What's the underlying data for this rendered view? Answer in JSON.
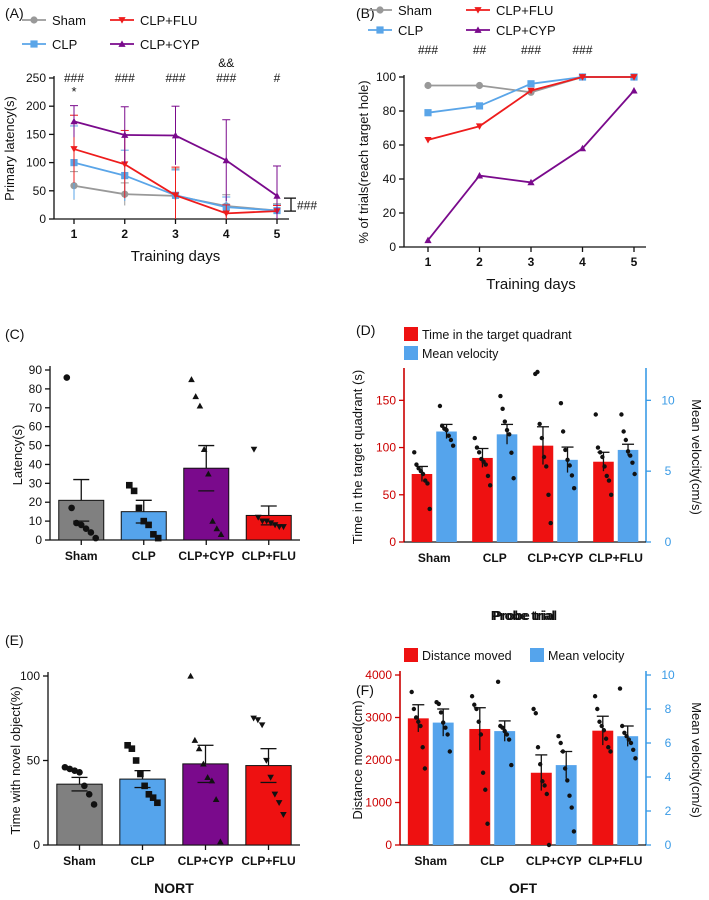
{
  "colors": {
    "sham": "#999999",
    "clp": "#5aa5e8",
    "clp_flu": "#ee1c1c",
    "clp_cyp": "#7a0a8c",
    "bar_sham": "#808080",
    "bar_clp": "#55a4ec",
    "bar_cyp": "#7a0a8c",
    "bar_flu": "#ee1111",
    "right_axis": "#3a9be6",
    "left_axis_red": "#cc0000"
  },
  "chart_data": [
    {
      "panel": "(A)",
      "type": "line",
      "ylabel": "Primary latency(s)",
      "xlabel": "Training days",
      "x": [
        1,
        2,
        3,
        4,
        5
      ],
      "ylim": [
        0,
        250
      ],
      "yticks": [
        "0",
        "50",
        "100",
        "150",
        "200",
        "250"
      ],
      "xticks": [
        "1",
        "2",
        "3",
        "4",
        "5"
      ],
      "series": [
        {
          "name": "Sham",
          "values": [
            59,
            44,
            41,
            23,
            15
          ],
          "err": [
            25,
            20,
            48,
            20,
            12
          ]
        },
        {
          "name": "CLP",
          "values": [
            100,
            77,
            42,
            21,
            15
          ],
          "err": [
            65,
            45,
            45,
            18,
            10
          ]
        },
        {
          "name": "CLP+FLU",
          "values": [
            124,
            97,
            42,
            10,
            14
          ],
          "err": [
            60,
            60,
            50,
            15,
            10
          ]
        },
        {
          "name": "CLP+CYP",
          "values": [
            173,
            149,
            148,
            104,
            41
          ],
          "err": [
            28,
            50,
            52,
            72,
            53
          ]
        }
      ],
      "annotations_top": [
        "###",
        "###",
        "###",
        "###",
        "#"
      ],
      "annotations_star": "*",
      "annotation_amp": "&&",
      "bracket_label": "###",
      "legend": [
        "Sham",
        "CLP",
        "CLP+FLU",
        "CLP+CYP"
      ]
    },
    {
      "panel": "(B)",
      "type": "line",
      "ylabel": "% of trials(reach  target hole)",
      "xlabel": "Training days",
      "x": [
        1,
        2,
        3,
        4,
        5
      ],
      "ylim": [
        0,
        100
      ],
      "yticks": [
        "0",
        "20",
        "40",
        "60",
        "80",
        "100"
      ],
      "xticks": [
        "1",
        "2",
        "3",
        "4",
        "5"
      ],
      "series": [
        {
          "name": "Sham",
          "values": [
            95,
            95,
            91,
            100,
            100
          ]
        },
        {
          "name": "CLP",
          "values": [
            79,
            83,
            96,
            100,
            100
          ]
        },
        {
          "name": "CLP+FLU",
          "values": [
            63,
            71,
            92,
            100,
            100
          ]
        },
        {
          "name": "CLP+CYP",
          "values": [
            4,
            42,
            38,
            58,
            92
          ]
        }
      ],
      "annotations_top": [
        "###",
        "##",
        "###",
        "###"
      ],
      "legend": [
        "Sham",
        "CLP",
        "CLP+FLU",
        "CLP+CYP"
      ]
    },
    {
      "panel": "(C)",
      "type": "bar",
      "ylabel": "Latency(s)",
      "categories": [
        "Sham",
        "CLP",
        "CLP+CYP",
        "CLP+FLU"
      ],
      "values": [
        21,
        15,
        38,
        13
      ],
      "err": [
        11,
        6,
        12,
        5
      ],
      "ylim": [
        0,
        90
      ],
      "yticks": [
        "0",
        "10",
        "20",
        "30",
        "40",
        "50",
        "60",
        "70",
        "80",
        "90"
      ],
      "points": [
        [
          86,
          17,
          9,
          8,
          6,
          4,
          1
        ],
        [
          29,
          26,
          17,
          10,
          8,
          3,
          1
        ],
        [
          85,
          76,
          71,
          48,
          35,
          10,
          6,
          3
        ],
        [
          48,
          12,
          10,
          10,
          9,
          8,
          7,
          7
        ]
      ]
    },
    {
      "panel": "(D)",
      "type": "bar",
      "title": "Probe trial",
      "ylabel": "Time in the target quadrant (s)",
      "ylabel_right": "Mean velocity(cm/s)",
      "categories": [
        "Sham",
        "CLP",
        "CLP+CYP",
        "CLP+FLU"
      ],
      "ylim": [
        0,
        180
      ],
      "yticks": [
        "0",
        "50",
        "100",
        "150"
      ],
      "yticks_right": [
        "0",
        "5",
        "10"
      ],
      "ylim_right": [
        0,
        12
      ],
      "legend": [
        "Time in the target quadrant",
        "Mean velocity"
      ],
      "series": [
        {
          "name": "Time in the target quadrant",
          "values": [
            72,
            89,
            102,
            85
          ],
          "err": [
            8,
            10,
            20,
            10
          ]
        },
        {
          "name": "Mean velocity",
          "values": [
            7.8,
            7.6,
            5.8,
            6.5
          ],
          "err": [
            0.5,
            0.7,
            0.9,
            0.4
          ]
        }
      ],
      "points_left": [
        [
          95,
          82,
          78,
          75,
          72,
          65,
          62,
          35
        ],
        [
          110,
          100,
          95,
          88,
          85,
          82,
          70,
          60
        ],
        [
          178,
          180,
          125,
          110,
          90,
          80,
          50,
          20
        ],
        [
          135,
          100,
          95,
          90,
          80,
          70,
          65,
          50
        ]
      ],
      "points_right": [
        [
          9.6,
          8.2,
          8.0,
          7.9,
          7.5,
          7.2,
          6.8
        ],
        [
          10.3,
          9.4,
          8.5,
          7.9,
          7.6,
          6.3,
          4.5
        ],
        [
          9.8,
          7.8,
          6.5,
          5.8,
          5.4,
          4.7,
          3.8
        ],
        [
          9.0,
          7.8,
          7.2,
          6.4,
          6.1,
          5.6,
          4.8
        ]
      ]
    },
    {
      "panel": "(E)",
      "type": "bar",
      "xlabel": "NORT",
      "ylabel": "Time with novel object(%)",
      "categories": [
        "Sham",
        "CLP",
        "CLP+CYP",
        "CLP+FLU"
      ],
      "values": [
        36,
        39,
        48,
        47
      ],
      "err": [
        4,
        5,
        11,
        10
      ],
      "ylim": [
        0,
        100
      ],
      "yticks": [
        "0",
        "50",
        "100"
      ],
      "points": [
        [
          46,
          45,
          44,
          43,
          35,
          30,
          24
        ],
        [
          59,
          57,
          50,
          42,
          35,
          30,
          28,
          25
        ],
        [
          100,
          62,
          57,
          48,
          40,
          38,
          27,
          2
        ],
        [
          75,
          74,
          71,
          50,
          40,
          30,
          25,
          18
        ]
      ]
    },
    {
      "panel": "(F)",
      "type": "bar",
      "title": "Probe trial",
      "xlabel": "OFT",
      "ylabel": "Distance moved(cm)",
      "ylabel_right": "Mean velocity(cm/s)",
      "categories": [
        "Sham",
        "CLP",
        "CLP+CYP",
        "CLP+FLU"
      ],
      "ylim": [
        0,
        4000
      ],
      "yticks": [
        "0",
        "1000",
        "2000",
        "3000",
        "4000"
      ],
      "ylim_right": [
        0,
        10
      ],
      "yticks_right": [
        "0",
        "2",
        "4",
        "6",
        "8",
        "10"
      ],
      "legend": [
        "Distance moved",
        "Mean velocity"
      ],
      "series": [
        {
          "name": "Distance moved",
          "values": [
            2980,
            2730,
            1700,
            2690
          ],
          "err": [
            320,
            500,
            420,
            340
          ]
        },
        {
          "name": "Mean velocity",
          "values": [
            7.2,
            6.7,
            4.7,
            6.4
          ],
          "err": [
            0.8,
            0.6,
            0.8,
            0.6
          ]
        }
      ],
      "points_left": [
        [
          3600,
          3200,
          3000,
          2900,
          2800,
          2300,
          1800
        ],
        [
          3500,
          3300,
          3200,
          2900,
          2600,
          1700,
          1300,
          500
        ],
        [
          3200,
          3100,
          2300,
          1900,
          1500,
          1400,
          1200,
          0
        ],
        [
          3500,
          3200,
          2900,
          2800,
          2700,
          2500,
          2300,
          2200
        ]
      ],
      "points_right": [
        [
          8.4,
          8.3,
          7.8,
          7.2,
          6.9,
          6.5,
          5.5
        ],
        [
          9.6,
          7.0,
          6.9,
          6.7,
          6.5,
          6.2,
          4.7
        ],
        [
          6.4,
          6.0,
          5.5,
          4.5,
          3.8,
          2.9,
          2.2,
          0.8
        ],
        [
          9.2,
          7.0,
          6.6,
          6.4,
          6.2,
          6.0,
          5.6,
          5.1
        ]
      ]
    }
  ]
}
